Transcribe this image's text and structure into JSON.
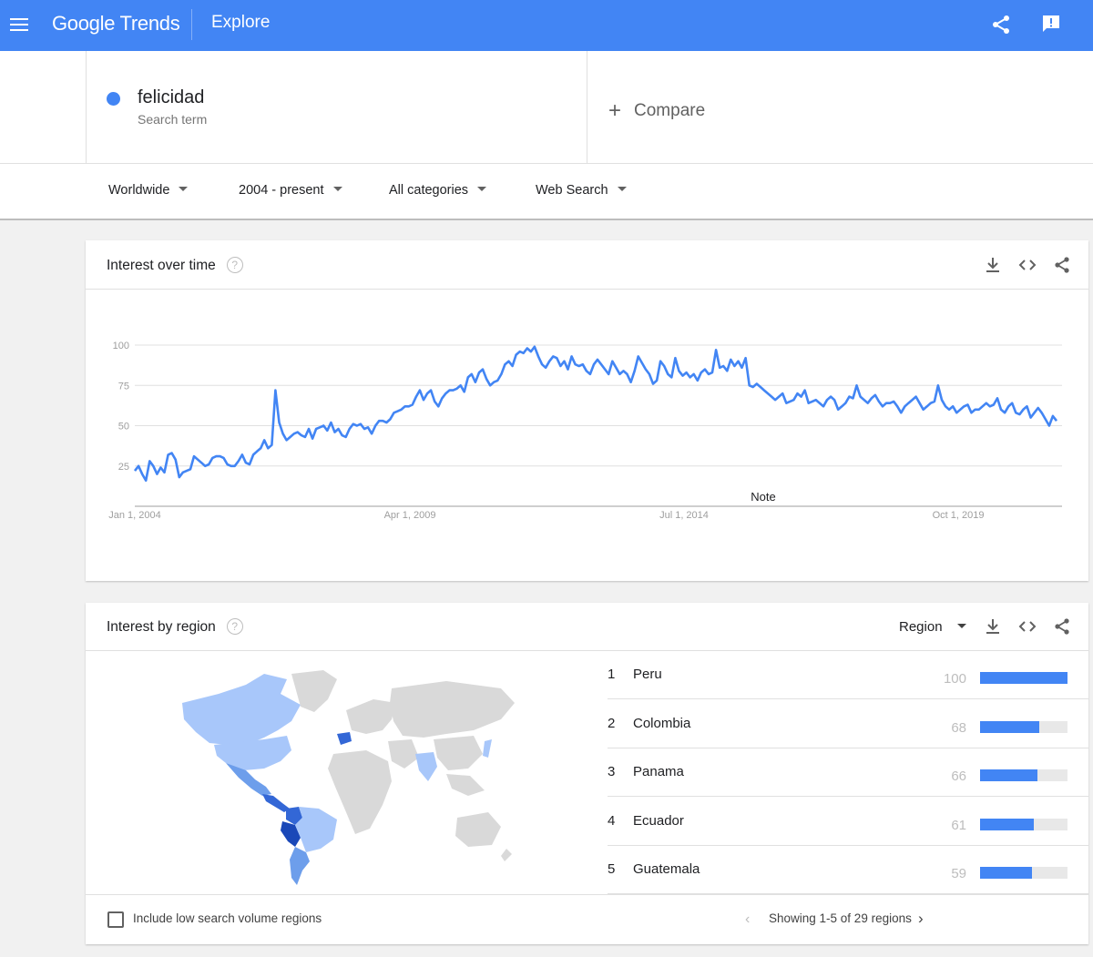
{
  "header": {
    "logo_text": "Google Trends",
    "page_label": "Explore",
    "colors": {
      "bar": "#4285f4",
      "accent": "#4285f4"
    }
  },
  "search_term": {
    "name": "felicidad",
    "type_label": "Search term",
    "color": "#4285f4"
  },
  "compare_label": "Compare",
  "filters": {
    "location": "Worldwide",
    "time_range": "2004 - present",
    "category": "All categories",
    "search_type": "Web Search"
  },
  "interest_over_time": {
    "title": "Interest over time",
    "help_glyph": "?",
    "note_label": "Note",
    "chart_data": {
      "type": "line",
      "title": "Interest over time",
      "xlabel": "",
      "ylabel": "",
      "x_ticks": [
        "Jan 1, 2004",
        "Apr 1, 2009",
        "Jul 1, 2014",
        "Oct 1, 2019"
      ],
      "y_ticks": [
        25,
        50,
        75,
        100
      ],
      "ylim": [
        0,
        100
      ],
      "x_range": [
        "2004-01",
        "2021-10"
      ],
      "grid": true,
      "annotations": [
        {
          "label": "Note",
          "x": "2015-06"
        }
      ],
      "series": [
        {
          "color": "#4285f4",
          "values": [
            22,
            25,
            20,
            16,
            28,
            25,
            20,
            24,
            21,
            32,
            33,
            29,
            18,
            21,
            22,
            23,
            31,
            29,
            27,
            25,
            26,
            30,
            31,
            31,
            30,
            26,
            25,
            25,
            28,
            32,
            27,
            26,
            32,
            34,
            36,
            41,
            36,
            38,
            72,
            52,
            45,
            41,
            43,
            45,
            46,
            44,
            43,
            48,
            42,
            48,
            49,
            50,
            47,
            52,
            46,
            48,
            44,
            43,
            48,
            51,
            50,
            51,
            48,
            49,
            45,
            50,
            53,
            53,
            52,
            54,
            58,
            59,
            60,
            62,
            62,
            63,
            68,
            72,
            66,
            70,
            72,
            65,
            62,
            67,
            70,
            72,
            72,
            73,
            75,
            71,
            80,
            82,
            77,
            83,
            85,
            79,
            75,
            77,
            78,
            82,
            88,
            90,
            87,
            94,
            96,
            95,
            98,
            96,
            99,
            93,
            88,
            86,
            90,
            93,
            92,
            87,
            90,
            85,
            93,
            88,
            87,
            88,
            84,
            82,
            88,
            91,
            88,
            85,
            82,
            90,
            86,
            82,
            84,
            82,
            77,
            84,
            93,
            89,
            85,
            82,
            76,
            78,
            90,
            87,
            82,
            80,
            92,
            84,
            81,
            83,
            80,
            82,
            78,
            83,
            85,
            82,
            83,
            97,
            86,
            87,
            84,
            91,
            87,
            90,
            86,
            92,
            75,
            74,
            76,
            74,
            72,
            70,
            68,
            66,
            68,
            70,
            64,
            65,
            66,
            70,
            68,
            72,
            64,
            65,
            66,
            64,
            62,
            66,
            68,
            66,
            60,
            62,
            64,
            68,
            67,
            75,
            68,
            66,
            64,
            67,
            69,
            65,
            62,
            64,
            64,
            65,
            62,
            58,
            62,
            64,
            66,
            68,
            64,
            60,
            62,
            64,
            65,
            75,
            66,
            62,
            60,
            62,
            58,
            60,
            62,
            63,
            58,
            60,
            60,
            62,
            64,
            62,
            63,
            67,
            60,
            58,
            62,
            64,
            58,
            57,
            60,
            62,
            55,
            58,
            61,
            58,
            54,
            50,
            56,
            53
          ]
        }
      ]
    }
  },
  "interest_by_region": {
    "title": "Interest by region",
    "help_glyph": "?",
    "resolution_label": "Region",
    "regions": [
      {
        "rank": "1",
        "name": "Peru",
        "value": "100",
        "fraction": 1.0
      },
      {
        "rank": "2",
        "name": "Colombia",
        "value": "68",
        "fraction": 0.68
      },
      {
        "rank": "3",
        "name": "Panama",
        "value": "66",
        "fraction": 0.66
      },
      {
        "rank": "4",
        "name": "Ecuador",
        "value": "61",
        "fraction": 0.61
      },
      {
        "rank": "5",
        "name": "Guatemala",
        "value": "59",
        "fraction": 0.59
      }
    ],
    "low_volume_label": "Include low search volume regions",
    "low_volume_checked": false,
    "pagination_label": "Showing 1-5 of 29 regions",
    "map_colors": {
      "no_data": "#d9d9d9",
      "low": "#a8c7fa",
      "mid": "#6d9eeb",
      "high": "#3367d6",
      "highest": "#1a48b8"
    }
  }
}
